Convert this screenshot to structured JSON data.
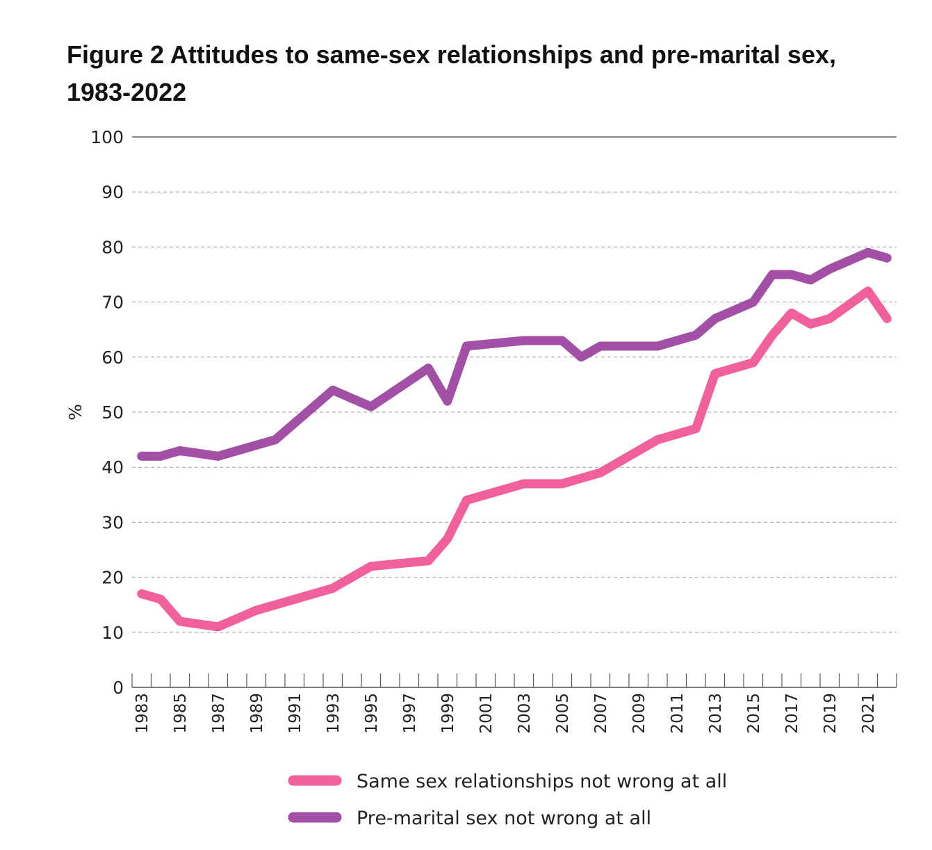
{
  "chart_data": {
    "type": "line",
    "title": "Figure 2 Attitudes to same-sex relationships and pre-marital sex, 1983-2022",
    "xlabel": "",
    "ylabel": "%",
    "ylim": [
      0,
      100
    ],
    "yticks": [
      0,
      10,
      20,
      30,
      40,
      50,
      60,
      70,
      80,
      90,
      100
    ],
    "xlim": [
      1983,
      2022
    ],
    "xtick_labels": [
      "1983",
      "1985",
      "1987",
      "1989",
      "1991",
      "1993",
      "1995",
      "1997",
      "1999",
      "2001",
      "2003",
      "2005",
      "2007",
      "2009",
      "2011",
      "2013",
      "2015",
      "2017",
      "2019",
      "2021"
    ],
    "grid": "horizontal dashed",
    "legend_position": "bottom",
    "series": [
      {
        "name": "Same sex relationships not wrong at all",
        "color": "#f0609a",
        "points": [
          [
            1983,
            17
          ],
          [
            1984,
            16
          ],
          [
            1985,
            12
          ],
          [
            1987,
            11
          ],
          [
            1989,
            14
          ],
          [
            1990,
            15
          ],
          [
            1993,
            18
          ],
          [
            1995,
            22
          ],
          [
            1998,
            23
          ],
          [
            1999,
            27
          ],
          [
            2000,
            34
          ],
          [
            2003,
            37
          ],
          [
            2005,
            37
          ],
          [
            2007,
            39
          ],
          [
            2010,
            45
          ],
          [
            2012,
            47
          ],
          [
            2013,
            57
          ],
          [
            2015,
            59
          ],
          [
            2016,
            64
          ],
          [
            2017,
            68
          ],
          [
            2018,
            66
          ],
          [
            2019,
            67
          ],
          [
            2021,
            72
          ],
          [
            2022,
            67
          ]
        ]
      },
      {
        "name": "Pre-marital sex not wrong at all",
        "color": "#a24fa6",
        "points": [
          [
            1983,
            42
          ],
          [
            1984,
            42
          ],
          [
            1985,
            43
          ],
          [
            1987,
            42
          ],
          [
            1989,
            44
          ],
          [
            1990,
            45
          ],
          [
            1993,
            54
          ],
          [
            1995,
            51
          ],
          [
            1998,
            58
          ],
          [
            1999,
            52
          ],
          [
            2000,
            62
          ],
          [
            2003,
            63
          ],
          [
            2005,
            63
          ],
          [
            2006,
            60
          ],
          [
            2007,
            62
          ],
          [
            2010,
            62
          ],
          [
            2012,
            64
          ],
          [
            2013,
            67
          ],
          [
            2015,
            70
          ],
          [
            2016,
            75
          ],
          [
            2017,
            75
          ],
          [
            2018,
            74
          ],
          [
            2019,
            76
          ],
          [
            2021,
            79
          ],
          [
            2022,
            78
          ]
        ]
      }
    ]
  }
}
